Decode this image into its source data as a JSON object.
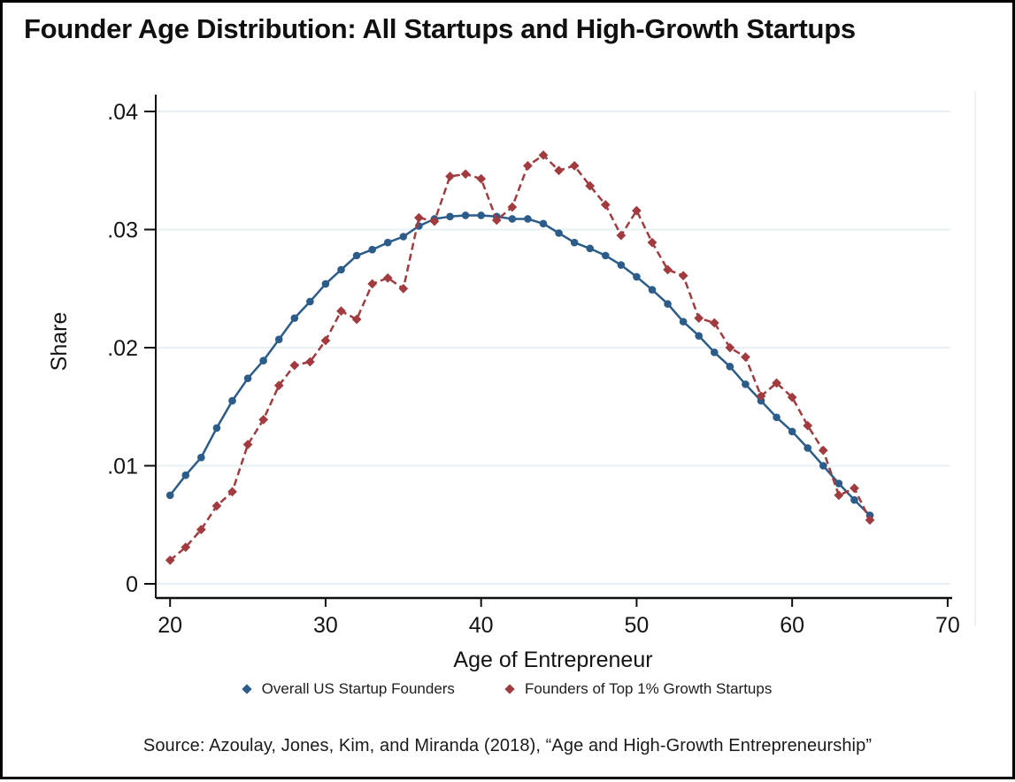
{
  "title": "Founder Age Distribution: All Startups and High-Growth Startups",
  "source_note": "Source: Azoulay, Jones, Kim, and Miranda (2018), “Age and High-Growth Entrepreneurship”",
  "colors": {
    "overall_series": "#2B5C8A",
    "top1_series": "#A23B3F",
    "gridline": "#E7F0F3",
    "axis": "#0E0E0E",
    "plot_right_border": "#ECF3F5",
    "text": "#141414"
  },
  "chart_data": {
    "type": "line",
    "title": "Founder Age Distribution: All Startups and High-Growth Startups",
    "xlabel": "Age of Entrepreneur",
    "ylabel": "Share",
    "xlim": [
      19,
      71
    ],
    "ylim": [
      0,
      0.042
    ],
    "xticks": [
      20,
      30,
      40,
      50,
      60,
      70
    ],
    "yticks": [
      0,
      0.01,
      0.02,
      0.03,
      0.04
    ],
    "ytick_labels": [
      "0",
      ".01",
      ".02",
      ".03",
      ".04"
    ],
    "grid": true,
    "legend_position": "bottom",
    "x": [
      20,
      21,
      22,
      23,
      24,
      25,
      26,
      27,
      28,
      29,
      30,
      31,
      32,
      33,
      34,
      35,
      36,
      37,
      38,
      39,
      40,
      41,
      42,
      43,
      44,
      45,
      46,
      47,
      48,
      49,
      50,
      51,
      52,
      53,
      54,
      55,
      56,
      57,
      58,
      59,
      60,
      61,
      62,
      63,
      64,
      65
    ],
    "series": [
      {
        "name": "Overall US Startup Founders",
        "color": "#2B5C8A",
        "line_style": "solid",
        "marker": "circle",
        "values": [
          0.0075,
          0.0092,
          0.0107,
          0.0132,
          0.0155,
          0.0174,
          0.0189,
          0.0207,
          0.0225,
          0.0239,
          0.0254,
          0.0266,
          0.0278,
          0.0283,
          0.0289,
          0.0294,
          0.0303,
          0.0309,
          0.0311,
          0.0312,
          0.0312,
          0.0311,
          0.0309,
          0.0309,
          0.0305,
          0.0297,
          0.0289,
          0.0284,
          0.0278,
          0.027,
          0.026,
          0.0249,
          0.0237,
          0.0222,
          0.021,
          0.0196,
          0.0184,
          0.0169,
          0.0155,
          0.0141,
          0.0129,
          0.0115,
          0.01,
          0.0085,
          0.0071,
          0.0058
        ]
      },
      {
        "name": "Founders of Top 1% Growth Startups",
        "color": "#A23B3F",
        "line_style": "dashed",
        "marker": "diamond",
        "values": [
          0.002,
          0.0031,
          0.0046,
          0.0066,
          0.0078,
          0.0118,
          0.0139,
          0.0168,
          0.0185,
          0.0188,
          0.0206,
          0.0231,
          0.0224,
          0.0254,
          0.0259,
          0.025,
          0.031,
          0.0307,
          0.0345,
          0.0347,
          0.0343,
          0.0308,
          0.0319,
          0.0354,
          0.0363,
          0.035,
          0.0354,
          0.0337,
          0.0321,
          0.0295,
          0.0316,
          0.0289,
          0.0266,
          0.0261,
          0.0225,
          0.0221,
          0.02,
          0.0192,
          0.0159,
          0.017,
          0.0158,
          0.0134,
          0.0113,
          0.0075,
          0.0081,
          0.0054
        ]
      }
    ]
  }
}
